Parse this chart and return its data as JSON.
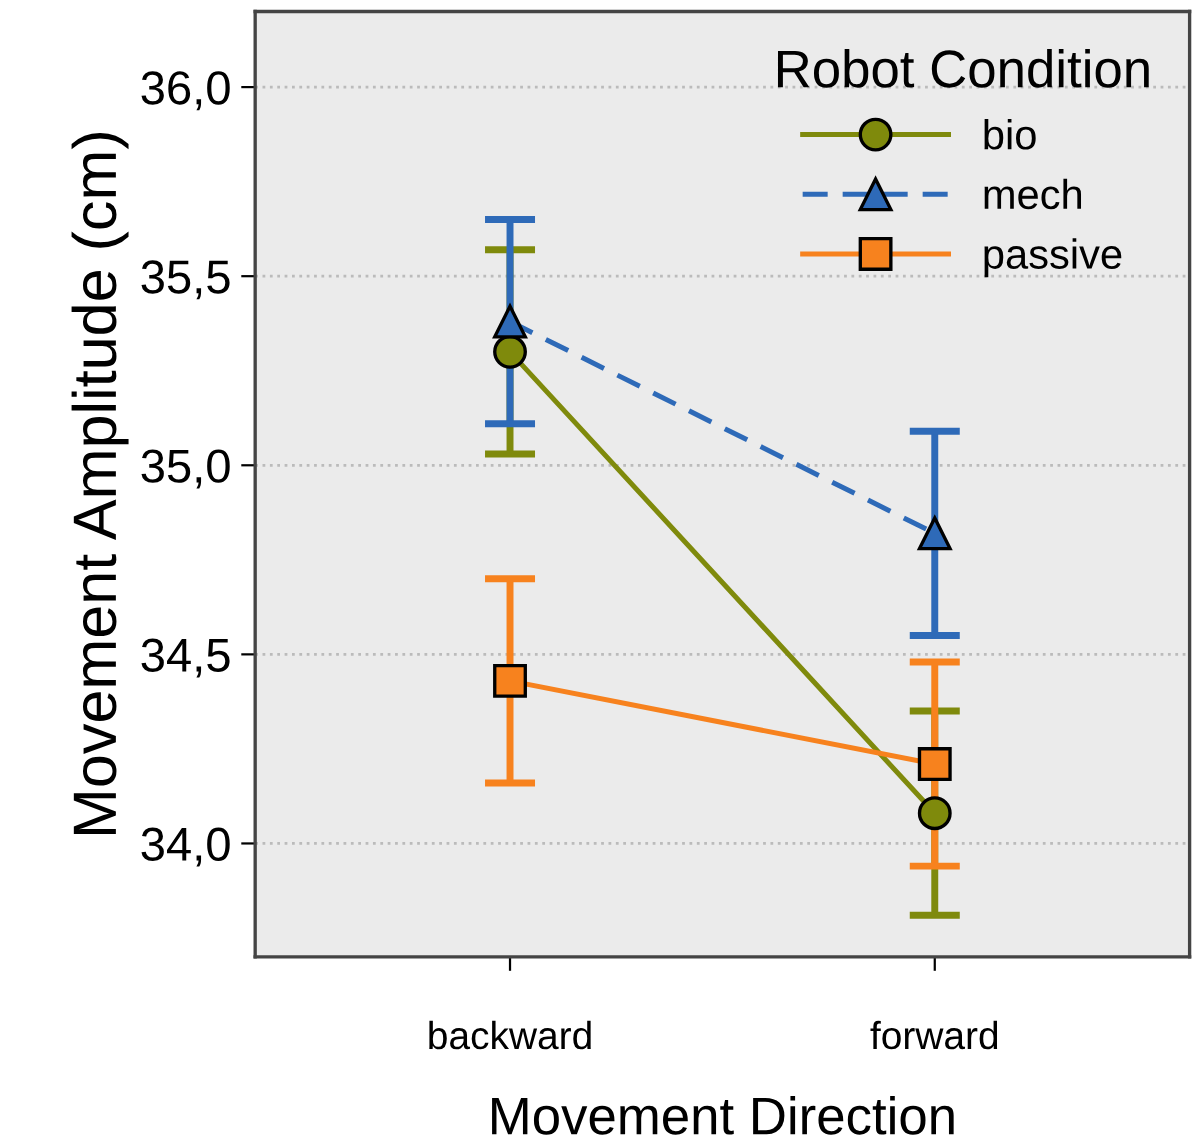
{
  "chart_data": {
    "type": "line",
    "xlabel": "Movement Direction",
    "ylabel": "Movement Amplitude (cm)",
    "legend_title": "Robot Condition",
    "categories": [
      "backward",
      "forward"
    ],
    "series": [
      {
        "name": "bio",
        "color": "#7f8a0c",
        "values": [
          35.3,
          34.08
        ],
        "errors": [
          0.27,
          0.27
        ],
        "marker": "circle",
        "line_style": "solid"
      },
      {
        "name": "mech",
        "color": "#2e6ab8",
        "values": [
          35.38,
          34.82
        ],
        "errors": [
          0.27,
          0.27
        ],
        "marker": "triangle",
        "line_style": "dashed"
      },
      {
        "name": "passive",
        "color": "#f7821e",
        "values": [
          34.43,
          34.21
        ],
        "errors": [
          0.27,
          0.27
        ],
        "marker": "square",
        "line_style": "solid"
      }
    ],
    "ylim": [
      33.7,
      36.2
    ],
    "yticks": [
      {
        "value": 34.0,
        "label": "34,0"
      },
      {
        "value": 34.5,
        "label": "34,5"
      },
      {
        "value": 35.0,
        "label": "35,0"
      },
      {
        "value": 35.5,
        "label": "35,5"
      },
      {
        "value": 36.0,
        "label": "36,0"
      }
    ],
    "grid": "y",
    "legend": "top right"
  }
}
